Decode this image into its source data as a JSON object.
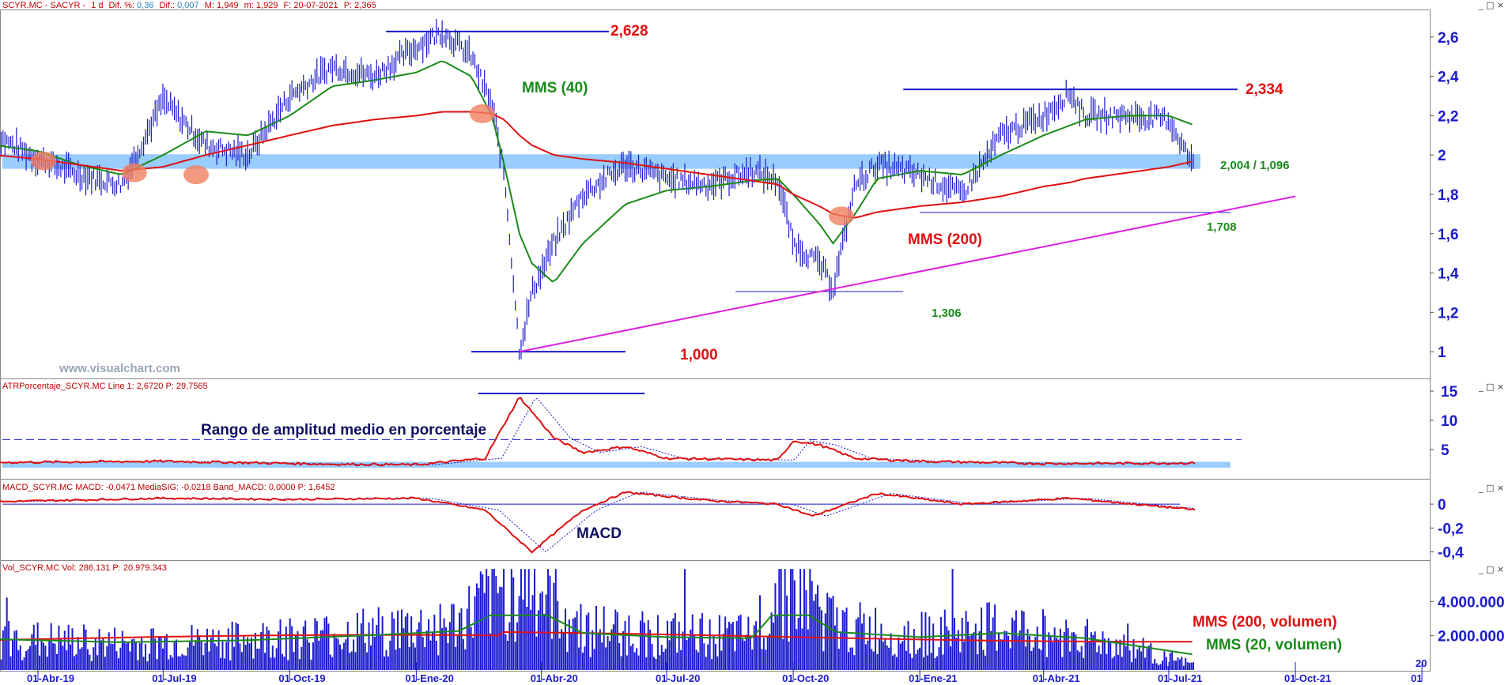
{
  "header": {
    "main": {
      "symbol": "SCYR.MC - SACYR -",
      "period": "1 d",
      "dif_pct_label": "Dif. %:",
      "dif_pct": "0,36",
      "dif_label": "Dif.:",
      "dif": "0,007",
      "m_label": "M:",
      "max": "1,949",
      "min_label": "m:",
      "min": "1,929",
      "date_label": "F:",
      "date": "20-07-2021",
      "price_label": "P:",
      "price": "2,365"
    },
    "atr": "ATRPorcentaje_SCYR.MC  Line 1: 2,6720  P: 29,7565",
    "macd": "MACD_SCYR.MC  MACD: -0,0471  MediaSIG: -0,0218  Band_MACD: 0,0000  P: 1,6452",
    "vol": "Vol_SCYR.MC  Vol: 286.131  P: 20.979.343"
  },
  "window_buttons": "_ □ ×",
  "watermark": "www.visualchart.com",
  "annotations": {
    "high": "2,628",
    "mms40": "MMS (40)",
    "level_2334": "2,334",
    "support": "2,004 / 1,096",
    "level_1708": "1,708",
    "mms200": "MMS (200)",
    "level_1306": "1,306",
    "low": "1,000",
    "atr_title": "Rango de amplitud medio en porcentaje",
    "macd_title": "MACD",
    "vol_mms200": "MMS (200, volumen)",
    "vol_mms20": "MMS (20, volumen)"
  },
  "x_labels": [
    "01-Abr-19",
    "01-Jul-19",
    "01-Oct-19",
    "01-Ene-20",
    "01-Abr-20",
    "01-Jul-20",
    "01-Oct-20",
    "01-Ene-21",
    "01-Abr-21",
    "01-Jul-21",
    "01-Oct-21",
    "01"
  ],
  "x_label_extra": "20",
  "colors": {
    "price": "#1a1acc",
    "mms40": "#1a8a1a",
    "mms200": "#e01010",
    "trendline": "#e020e0",
    "band": "#7fbfff",
    "crossover": "#f08060"
  },
  "chart_data": [
    {
      "type": "line",
      "title": "SCYR.MC - SACYR - 1 d",
      "x": [
        "2019-03-01",
        "2019-04-01",
        "2019-05-01",
        "2019-06-01",
        "2019-07-01",
        "2019-08-01",
        "2019-09-01",
        "2019-10-01",
        "2019-11-01",
        "2019-12-01",
        "2020-01-01",
        "2020-01-20",
        "2020-02-10",
        "2020-02-25",
        "2020-03-05",
        "2020-03-16",
        "2020-03-25",
        "2020-04-10",
        "2020-05-01",
        "2020-06-01",
        "2020-07-01",
        "2020-08-01",
        "2020-09-01",
        "2020-09-20",
        "2020-10-01",
        "2020-10-20",
        "2020-10-30",
        "2020-11-15",
        "2020-12-01",
        "2021-01-01",
        "2021-02-01",
        "2021-03-01",
        "2021-04-01",
        "2021-04-20",
        "2021-05-01",
        "2021-06-01",
        "2021-07-01",
        "2021-07-20"
      ],
      "series": [
        {
          "name": "SCYR.MC",
          "values": [
            2.1,
            1.98,
            1.9,
            1.85,
            2.28,
            2.05,
            2.0,
            2.3,
            2.45,
            2.4,
            2.55,
            2.63,
            2.5,
            2.25,
            1.9,
            1.0,
            1.3,
            1.55,
            1.8,
            1.95,
            1.88,
            1.85,
            1.92,
            1.87,
            1.55,
            1.45,
            1.32,
            1.85,
            1.95,
            1.9,
            1.8,
            2.1,
            2.2,
            2.32,
            2.2,
            2.2,
            2.18,
            1.93
          ]
        },
        {
          "name": "MMS (40)",
          "values": [
            2.05,
            2.02,
            1.95,
            1.9,
            2.0,
            2.12,
            2.1,
            2.2,
            2.35,
            2.38,
            2.42,
            2.48,
            2.4,
            2.2,
            1.95,
            1.6,
            1.45,
            1.35,
            1.55,
            1.75,
            1.82,
            1.84,
            1.87,
            1.88,
            1.8,
            1.65,
            1.55,
            1.7,
            1.88,
            1.92,
            1.9,
            2.0,
            2.1,
            2.15,
            2.18,
            2.2,
            2.2,
            2.15
          ]
        },
        {
          "name": "MMS (200)",
          "values": [
            2.0,
            1.98,
            1.95,
            1.92,
            1.94,
            2.0,
            2.05,
            2.1,
            2.15,
            2.18,
            2.2,
            2.22,
            2.22,
            2.21,
            2.18,
            2.1,
            2.05,
            2.0,
            1.98,
            1.96,
            1.93,
            1.9,
            1.87,
            1.85,
            1.8,
            1.74,
            1.7,
            1.68,
            1.71,
            1.74,
            1.76,
            1.79,
            1.84,
            1.86,
            1.88,
            1.91,
            1.94,
            1.97
          ]
        }
      ],
      "ylim": [
        0.9,
        2.7
      ],
      "yticks": [
        "2,6",
        "2,4",
        "2,2",
        "2",
        "1,8",
        "1,6",
        "1,4",
        "1,2",
        "1"
      ],
      "levels": {
        "high": 2.628,
        "resistance": 2.334,
        "band": [
          1.93,
          2.004
        ],
        "support_1708": 1.708,
        "low_1306": 1.306,
        "low": 1.0
      },
      "trendline": {
        "from": [
          "2020-03-16",
          1.0
        ],
        "to": [
          "2021-10-01",
          1.79
        ]
      }
    },
    {
      "type": "line",
      "title": "ATRPorcentaje_SCYR.MC",
      "x": [
        "2019-03-01",
        "2019-07-01",
        "2019-11-01",
        "2020-01-01",
        "2020-02-20",
        "2020-03-16",
        "2020-04-10",
        "2020-05-01",
        "2020-06-01",
        "2020-07-01",
        "2020-09-20",
        "2020-10-01",
        "2020-10-20",
        "2020-11-15",
        "2021-01-01",
        "2021-04-01",
        "2021-07-20"
      ],
      "series": [
        {
          "name": "Line 1",
          "values": [
            2.8,
            3.0,
            2.5,
            2.4,
            3.5,
            14.0,
            7.0,
            4.5,
            5.5,
            3.5,
            3.2,
            6.5,
            5.8,
            3.5,
            3.0,
            2.6,
            2.7
          ]
        }
      ],
      "ylim": [
        0,
        15
      ],
      "yticks": [
        "15",
        "10",
        "5"
      ],
      "reference_line": 6.7
    },
    {
      "type": "line",
      "title": "MACD_SCYR.MC",
      "x": [
        "2019-03-01",
        "2019-07-01",
        "2019-10-01",
        "2020-01-01",
        "2020-02-20",
        "2020-03-25",
        "2020-05-01",
        "2020-06-01",
        "2020-08-01",
        "2020-09-20",
        "2020-10-15",
        "2020-12-01",
        "2021-02-01",
        "2021-04-20",
        "2021-07-20"
      ],
      "series": [
        {
          "name": "MACD",
          "values": [
            0.02,
            0.05,
            0.04,
            0.05,
            -0.05,
            -0.4,
            -0.05,
            0.1,
            0.03,
            0.0,
            -0.1,
            0.09,
            0.0,
            0.05,
            -0.047
          ]
        }
      ],
      "ylim": [
        -0.45,
        0.12
      ],
      "yticks": [
        "0",
        "-0,2",
        "-0,4"
      ]
    },
    {
      "type": "bar",
      "title": "Vol_SCYR.MC",
      "x": [
        "2019-03-01",
        "2019-06-01",
        "2019-09-01",
        "2019-12-01",
        "2020-02-01",
        "2020-03-16",
        "2020-05-01",
        "2020-07-01",
        "2020-09-01",
        "2020-09-25",
        "2020-11-01",
        "2021-01-01",
        "2021-03-01",
        "2021-05-01",
        "2021-07-20"
      ],
      "series": [
        {
          "name": "Vol",
          "values": [
            1800000,
            1500000,
            1700000,
            2200000,
            2600000,
            5500000,
            2400000,
            2000000,
            1900000,
            5600000,
            2500000,
            2000000,
            2400000,
            1900000,
            286131
          ]
        }
      ],
      "ylim": [
        0,
        6000000
      ],
      "yticks": [
        "4.000.000",
        "2.000.000"
      ]
    }
  ]
}
